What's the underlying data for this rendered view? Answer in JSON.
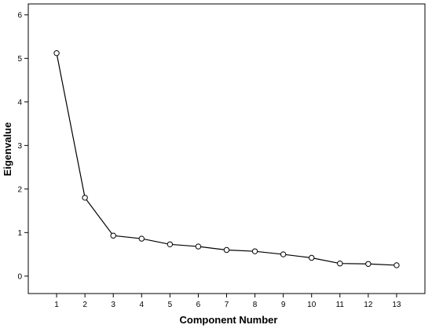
{
  "chart_data": {
    "type": "line",
    "title": "",
    "xlabel": "Component Number",
    "ylabel": "Eigenvalue",
    "x": [
      1,
      2,
      3,
      4,
      5,
      6,
      7,
      8,
      9,
      10,
      11,
      12,
      13
    ],
    "x_tick_labels": [
      "1",
      "2",
      "3",
      "4",
      "5",
      "6",
      "7",
      "8",
      "9",
      "10",
      "11",
      "12",
      "13"
    ],
    "y_ticks": [
      0,
      1,
      2,
      3,
      4,
      5,
      6
    ],
    "y_tick_labels": [
      "0",
      "1",
      "2",
      "3",
      "4",
      "5",
      "6"
    ],
    "xlim": [
      0,
      14
    ],
    "ylim": [
      -0.4,
      6.25
    ],
    "grid": false,
    "legend": "none",
    "marker": "open-circle",
    "series": [
      {
        "values": [
          5.12,
          1.8,
          0.93,
          0.86,
          0.73,
          0.68,
          0.6,
          0.57,
          0.5,
          0.42,
          0.29,
          0.28,
          0.25
        ]
      }
    ],
    "colors": {
      "line": "#000000",
      "marker_fill": "#ffffff",
      "axis": "#000000"
    }
  }
}
